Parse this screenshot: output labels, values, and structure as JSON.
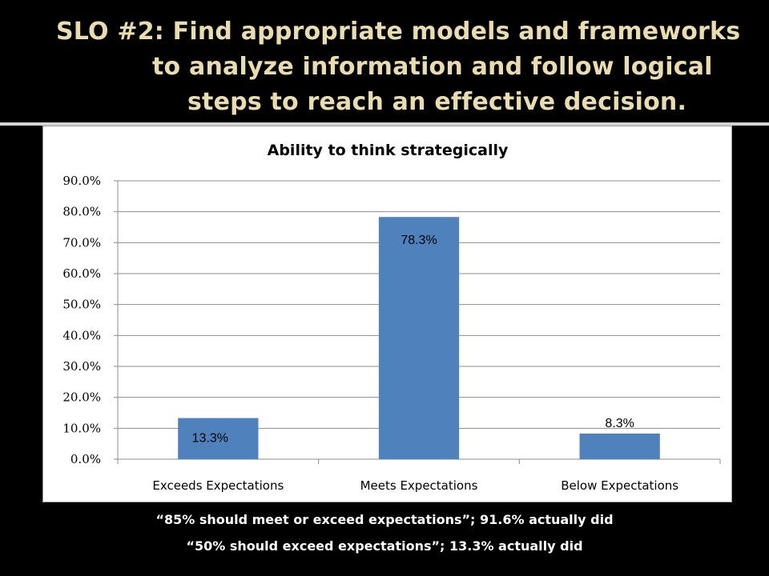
{
  "slide": {
    "title_lines": [
      "SLO #2: Find appropriate models and frameworks",
      "to analyze information and follow logical",
      "steps to reach an effective decision."
    ],
    "notes": [
      "“85% should meet or exceed expectations”; 91.6% actually did",
      "“50% should exceed expectations”; 13.3% actually did"
    ]
  },
  "colors": {
    "bar": "#4f81bd",
    "title_text": "#e8dcb0",
    "background": "#000000",
    "grid": "#8c8c8c"
  },
  "chart_data": {
    "type": "bar",
    "title": "Ability to think strategically",
    "categories": [
      "Exceeds Expectations",
      "Meets Expectations",
      "Below Expectations"
    ],
    "values": [
      13.3,
      78.3,
      8.3
    ],
    "data_labels": [
      "13.3%",
      "78.3%",
      "8.3%"
    ],
    "ylim": [
      0,
      90
    ],
    "yticks": [
      "0.0%",
      "10.0%",
      "20.0%",
      "30.0%",
      "40.0%",
      "50.0%",
      "60.0%",
      "70.0%",
      "80.0%",
      "90.0%"
    ],
    "grid": true,
    "legend": "none"
  }
}
